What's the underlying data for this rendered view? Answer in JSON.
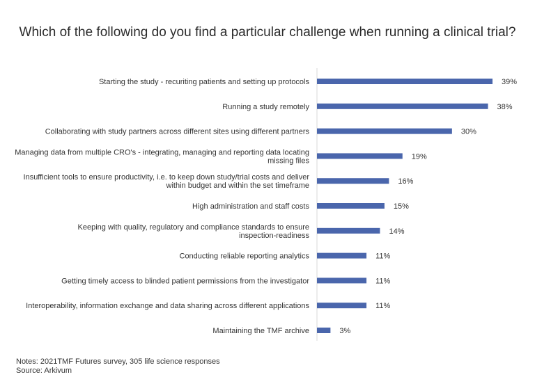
{
  "chart_data": {
    "type": "bar",
    "orientation": "horizontal",
    "title": "Which of the following do you find a particular challenge when running a clinical trial?",
    "categories": [
      [
        "Starting the study - recuriting patients and setting up protocols"
      ],
      [
        "Running a study remotely"
      ],
      [
        "Collaborating with study partners across different sites using different partners"
      ],
      [
        "Managing data from multiple CRO's - integrating, managing and reporting data locating",
        "missing files"
      ],
      [
        "Insufficient tools to ensure productivity, i.e. to keep down study/trial costs and deliver",
        "within budget and within the set timeframe"
      ],
      [
        "High administration and staff costs"
      ],
      [
        "Keeping with quality, regulatory and compliance standards to ensure",
        "inspection-readiness"
      ],
      [
        "Conducting reliable reporting analytics"
      ],
      [
        "Getting timely access to blinded patient permissions from the investigator"
      ],
      [
        "Interoperability, information exchange and data sharing across different applications"
      ],
      [
        "Maintaining the TMF archive"
      ]
    ],
    "values": [
      39,
      38,
      30,
      19,
      16,
      15,
      14,
      11,
      11,
      11,
      3
    ],
    "value_labels": [
      "39%",
      "38%",
      "30%",
      "19%",
      "16%",
      "15%",
      "14%",
      "11%",
      "11%",
      "11%",
      "3%"
    ],
    "unit": "%",
    "xlim": [
      0,
      40
    ],
    "grid": false,
    "legend": "none",
    "bar_color": "#4a66ac",
    "axis_color": "#d9d9d9"
  },
  "notes": {
    "line1": "Notes: 2021TMF Futures survey, 305 life science responses",
    "line2": "Source: Arkivum"
  }
}
